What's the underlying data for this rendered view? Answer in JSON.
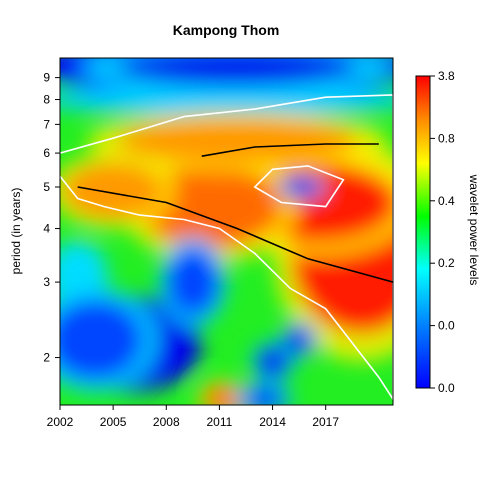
{
  "chart_data": {
    "type": "heatmap",
    "title": "Kampong Thom",
    "xlabel": "",
    "ylabel": "period (in years)",
    "x_ticks": [
      "2002",
      "2005",
      "2008",
      "2011",
      "2014",
      "2017"
    ],
    "y_ticks": [
      "2",
      "3",
      "4",
      "5",
      "6",
      "7",
      "8",
      "9"
    ],
    "y_scale": "log",
    "xlim": [
      2002,
      2020.8
    ],
    "ylim": [
      1.55,
      10
    ],
    "colorbar": {
      "label": "wavelet power levels",
      "tick_labels": [
        "3.8",
        "0.8",
        "0.4",
        "0.2",
        "0.0",
        "0.0"
      ],
      "colors": [
        "#ff0000",
        "#ff8c00",
        "#ffff00",
        "#00ff00",
        "#00ffff",
        "#0000ff"
      ]
    },
    "hotspots": [
      {
        "x": 2019.0,
        "y": 3.5,
        "power": 3.8
      },
      {
        "x": 2016.5,
        "y": 4.6,
        "power": 2.5
      },
      {
        "x": 2010.5,
        "y": 4.5,
        "power": 1.6
      },
      {
        "x": 2005.0,
        "y": 4.9,
        "power": 0.9
      },
      {
        "x": 2012.0,
        "y": 6.4,
        "power": 1.0
      },
      {
        "x": 2011.2,
        "y": 1.6,
        "power": 1.2
      }
    ],
    "lowspots": [
      {
        "x": 2015.6,
        "y": 5.0,
        "power": 0.0
      },
      {
        "x": 2004.0,
        "y": 2.2,
        "power": 0.02
      },
      {
        "x": 2009.5,
        "y": 3.0,
        "power": 0.02
      },
      {
        "x": 2014.0,
        "y": 1.95,
        "power": 0.0
      },
      {
        "x": 2015.5,
        "y": 2.2,
        "power": 0.0
      },
      {
        "x": 2013.5,
        "y": 1.6,
        "power": 0.05
      },
      {
        "x": 2012.0,
        "y": 9.5,
        "power": 0.0
      }
    ],
    "ridge_line": [
      [
        2003.0,
        5.0
      ],
      [
        2008.0,
        4.6
      ],
      [
        2012.0,
        4.0
      ],
      [
        2016.0,
        3.4
      ],
      [
        2020.8,
        3.0
      ]
    ],
    "upper_ridge_line": [
      [
        2010.0,
        5.9
      ],
      [
        2013.0,
        6.2
      ],
      [
        2017.0,
        6.3
      ],
      [
        2020.0,
        6.3
      ]
    ],
    "significance_contour": [
      [
        2002.0,
        6.0
      ],
      [
        2005.0,
        6.5
      ],
      [
        2009.0,
        7.3
      ],
      [
        2013.0,
        7.6
      ],
      [
        2017.0,
        8.1
      ],
      [
        2020.8,
        8.2
      ],
      [
        2020.8,
        1.6
      ],
      [
        2020.0,
        1.8
      ],
      [
        2018.0,
        2.3
      ],
      [
        2017.0,
        2.6
      ],
      [
        2015.0,
        2.9
      ],
      [
        2013.0,
        3.5
      ],
      [
        2011.0,
        4.0
      ],
      [
        2009.0,
        4.2
      ],
      [
        2006.5,
        4.3
      ],
      [
        2004.5,
        4.5
      ],
      [
        2003.0,
        4.7
      ],
      [
        2002.0,
        5.3
      ]
    ],
    "inner_contour": [
      [
        2013.0,
        5.0
      ],
      [
        2014.0,
        5.5
      ],
      [
        2016.0,
        5.6
      ],
      [
        2018.0,
        5.2
      ],
      [
        2017.0,
        4.5
      ],
      [
        2014.5,
        4.6
      ]
    ]
  }
}
